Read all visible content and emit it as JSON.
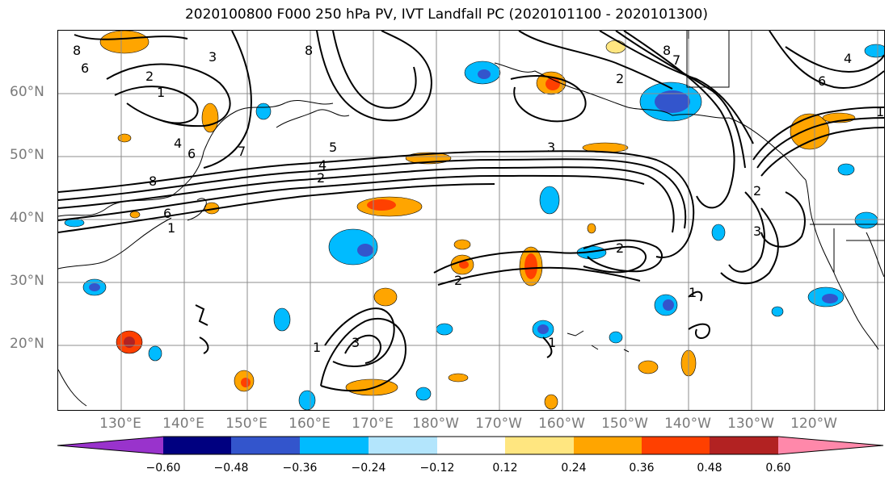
{
  "title": "2020100800 F000 250 hPa PV, IVT Landfall PC (2020101100 - 2020101300)",
  "lat_labels": [
    "60°N",
    "50°N",
    "40°N",
    "30°N",
    "20°N"
  ],
  "lon_labels": [
    "130°E",
    "140°E",
    "150°E",
    "160°E",
    "170°E",
    "180°W",
    "170°W",
    "160°W",
    "150°W",
    "140°W",
    "130°W",
    "120°W"
  ],
  "colorbar": {
    "ticks": [
      "−0.60",
      "−0.48",
      "−0.36",
      "−0.24",
      "−0.12",
      "0.12",
      "0.24",
      "0.36",
      "0.48",
      "0.60"
    ],
    "colors": [
      "#9933cc",
      "#000080",
      "#3355cc",
      "#00bbff",
      "#b3e5fc",
      "#ffffff",
      "#ffe680",
      "#ffa500",
      "#ff4000",
      "#b22222",
      "#ff88aa"
    ]
  },
  "contour_labels": [
    "8",
    "6",
    "2",
    "1",
    "4",
    "7",
    "6",
    "8",
    "8",
    "3",
    "2",
    "4",
    "5",
    "6",
    "1",
    "2",
    "3",
    "7",
    "8",
    "2",
    "1",
    "4",
    "6",
    "2",
    "3",
    "2",
    "1",
    "1",
    "3",
    "1"
  ],
  "colors": {
    "contour": "#000000",
    "grid": "#8c8c8c",
    "coast": "#000000"
  }
}
